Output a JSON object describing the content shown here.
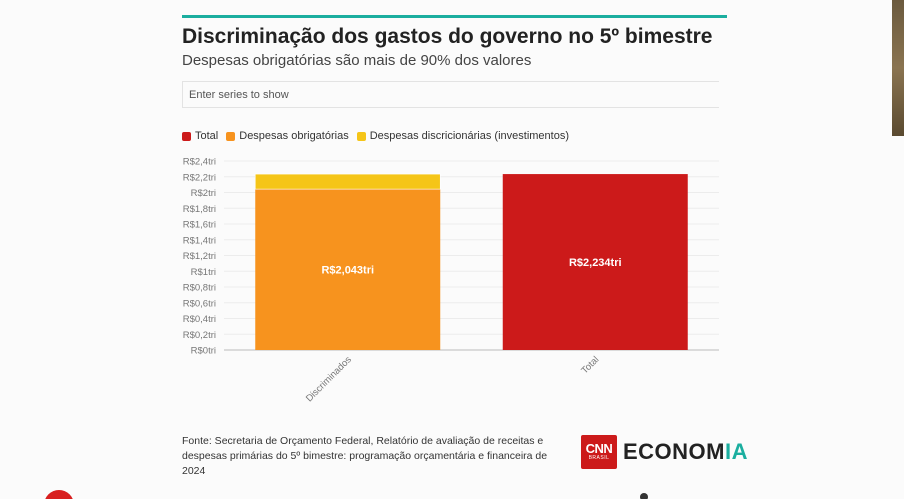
{
  "header": {
    "title": "Discriminação dos gastos do governo no 5º bimestre",
    "subtitle": "Despesas obrigatórias são mais de 90% dos valores"
  },
  "search": {
    "placeholder": "Enter series to show"
  },
  "legend": [
    {
      "label": "Total",
      "color": "#cc1a1a"
    },
    {
      "label": "Despesas obrigatórias",
      "color": "#f7931e"
    },
    {
      "label": "Despesas discricionárias (investimentos)",
      "color": "#f5c518"
    }
  ],
  "chart_data": {
    "type": "bar",
    "stacked": true,
    "categories": [
      "Discriminados",
      "Total"
    ],
    "series": [
      {
        "name": "Despesas obrigatórias",
        "color": "#f7931e",
        "values": [
          2.043,
          0
        ],
        "labels": [
          "R$2,043tri",
          ""
        ]
      },
      {
        "name": "Despesas discricionárias (investimentos)",
        "color": "#f5c518",
        "values": [
          0.191,
          0
        ],
        "labels": [
          "",
          ""
        ]
      },
      {
        "name": "Total",
        "color": "#cc1a1a",
        "values": [
          0,
          2.234
        ],
        "labels": [
          "",
          "R$2,234tri"
        ]
      }
    ],
    "yticks": [
      {
        "v": 2.4,
        "label": "R$2,4tri"
      },
      {
        "v": 2.2,
        "label": "R$2,2tri"
      },
      {
        "v": 2.0,
        "label": "R$2tri"
      },
      {
        "v": 1.8,
        "label": "R$1,8tri"
      },
      {
        "v": 1.6,
        "label": "R$1,6tri"
      },
      {
        "v": 1.4,
        "label": "R$1,4tri"
      },
      {
        "v": 1.2,
        "label": "R$1,2tri"
      },
      {
        "v": 1.0,
        "label": "R$1tri"
      },
      {
        "v": 0.8,
        "label": "R$0,8tri"
      },
      {
        "v": 0.6,
        "label": "R$0,6tri"
      },
      {
        "v": 0.4,
        "label": "R$0,4tri"
      },
      {
        "v": 0.2,
        "label": "R$0,2tri"
      },
      {
        "v": 0.0,
        "label": "R$0tri"
      }
    ],
    "ylim": [
      0,
      2.4
    ],
    "grid": true,
    "legend_position": "top-left"
  },
  "footer": {
    "source": "Fonte: Secretaria de Orçamento Federal, Relatório de avaliação de receitas e despesas primárias do 5º bimestre: programação orçamentária e financeira de 2024",
    "logo_cnn": "CNN",
    "logo_cnn_sub": "BRASIL",
    "logo_economia_main": "ECONOM",
    "logo_economia_accent": "IA"
  }
}
